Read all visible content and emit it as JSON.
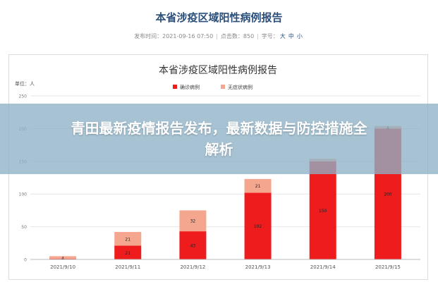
{
  "page": {
    "title": "本省涉疫区域阳性病例报告",
    "meta": {
      "published": "发布时间：2021-09-16 07:50",
      "clicks": "点击数：850",
      "font_label": "字号：",
      "size_large": "大",
      "size_medium": "中",
      "size_small": "小"
    }
  },
  "banner": {
    "headline": "青田最新疫情报告发布，最新数据与防控措施全解析"
  },
  "colors": {
    "confirmed": "#ee1c1c",
    "asymptomatic": "#f4a78e",
    "title": "#2b4f7a"
  },
  "chart_data": {
    "type": "bar",
    "stacked": true,
    "title": "本省涉疫区域阳性病例报告",
    "ylabel": "单位：人",
    "xlabel": "",
    "categories": [
      "2021/9/10",
      "2021/9/11",
      "2021/9/12",
      "2021/9/13",
      "2021/9/14",
      "2021/9/15"
    ],
    "series": [
      {
        "name": "确诊病例",
        "values": [
          1,
          21,
          43,
          102,
          150,
          200
        ],
        "color": "#ee1c1c"
      },
      {
        "name": "无症状病例",
        "values": [
          4,
          21,
          32,
          21,
          4,
          4
        ],
        "color": "#f4a78e"
      }
    ],
    "data_labels": [
      [
        "",
        "21",
        "43",
        "102",
        "150",
        "200"
      ],
      [
        "4",
        "21",
        "32",
        "21",
        "",
        "4"
      ]
    ],
    "ylim": [
      0,
      250
    ],
    "yticks": [
      "0",
      "50",
      "100",
      "150",
      "200",
      "250"
    ],
    "grid": true,
    "legend": "top-center"
  }
}
